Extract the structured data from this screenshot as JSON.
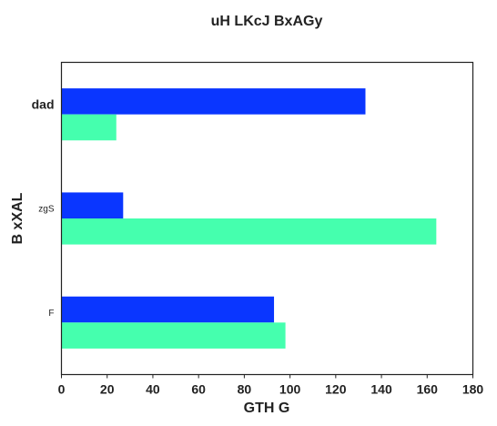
{
  "chart_data": {
    "type": "bar",
    "orientation": "horizontal",
    "title": "uH LKcJ BxAGy",
    "xlabel": "GTH   G",
    "ylabel": "B xXAL",
    "categories": [
      "dad",
      "zgS",
      "F"
    ],
    "category_label_styles": [
      "bold-large",
      "small",
      "small"
    ],
    "series": [
      {
        "values": [
          133,
          27,
          93
        ],
        "color": "#0a36ff"
      },
      {
        "values": [
          24,
          164,
          98
        ],
        "color": "#45ffae"
      }
    ],
    "xlim": [
      0,
      180
    ],
    "xticks": [
      "0",
      "20",
      "40",
      "60",
      "80",
      "100",
      "120",
      "140",
      "160",
      "180"
    ],
    "grid": false,
    "legend": "none"
  }
}
